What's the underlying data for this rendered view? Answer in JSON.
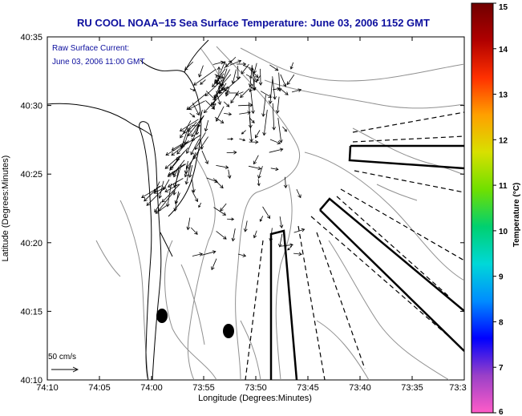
{
  "title": "RU COOL  NOAA−15  Sea Surface Temperature:  June 03, 2006 1152 GMT",
  "inset": {
    "line1": "Raw Surface Current:",
    "line2": "June 03, 2006 11:00 GMT"
  },
  "axes": {
    "xlabel": "Longitude (Degrees:Minutes)",
    "ylabel": "Latitude (Degrees:Minutes)",
    "x_ticks": [
      "74:10",
      "74:05",
      "74:00",
      "73:55",
      "73:50",
      "73:45",
      "73:40",
      "73:35",
      "73:3"
    ],
    "y_ticks": [
      "40:35",
      "40:30",
      "40:25",
      "40:20",
      "40:15",
      "40:10"
    ]
  },
  "scale": {
    "label": "50 cm/s"
  },
  "colorbar": {
    "label": "Temperature (°C)",
    "ticks": [
      "15",
      "14",
      "13",
      "12",
      "11",
      "10",
      "9",
      "8",
      "7",
      "6"
    ],
    "min": 6,
    "max": 15,
    "colors": [
      "#ff5cc8",
      "#9a40c8",
      "#0000ff",
      "#008cff",
      "#00d8d8",
      "#00d070",
      "#70e000",
      "#d8e000",
      "#ffa000",
      "#ff3000",
      "#b00000",
      "#700000"
    ]
  },
  "colors": {
    "title": "#0d0f9e",
    "coast": "#000000",
    "contour": "#909090"
  }
}
